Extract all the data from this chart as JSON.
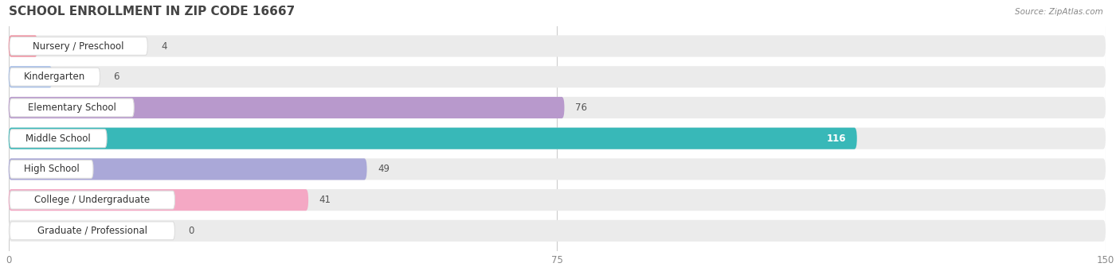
{
  "title": "SCHOOL ENROLLMENT IN ZIP CODE 16667",
  "source": "Source: ZipAtlas.com",
  "categories": [
    "Nursery / Preschool",
    "Kindergarten",
    "Elementary School",
    "Middle School",
    "High School",
    "College / Undergraduate",
    "Graduate / Professional"
  ],
  "values": [
    4,
    6,
    76,
    116,
    49,
    41,
    0
  ],
  "bar_colors": [
    "#f090a0",
    "#a8c0e8",
    "#b899cc",
    "#38b8b8",
    "#aaa8d8",
    "#f4a8c4",
    "#f0cc98"
  ],
  "xlim": [
    0,
    150
  ],
  "xticks": [
    0,
    75,
    150
  ],
  "bg_color": "#ffffff",
  "row_bg_color": "#ebebeb",
  "title_fontsize": 11,
  "label_fontsize": 8.5,
  "value_fontsize": 8.5
}
